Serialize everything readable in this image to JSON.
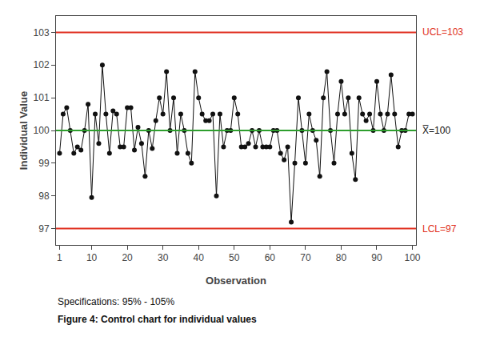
{
  "chart_data": {
    "type": "line",
    "xlabel": "Observation",
    "ylabel": "Individual Value",
    "x": [
      1,
      2,
      3,
      4,
      5,
      6,
      7,
      8,
      9,
      10,
      11,
      12,
      13,
      14,
      15,
      16,
      17,
      18,
      19,
      20,
      21,
      22,
      23,
      24,
      25,
      26,
      27,
      28,
      29,
      30,
      31,
      32,
      33,
      34,
      35,
      36,
      37,
      38,
      39,
      40,
      41,
      42,
      43,
      44,
      45,
      46,
      47,
      48,
      49,
      50,
      51,
      52,
      53,
      54,
      55,
      56,
      57,
      58,
      59,
      60,
      61,
      62,
      63,
      64,
      65,
      66,
      67,
      68,
      69,
      70,
      71,
      72,
      73,
      74,
      75,
      76,
      77,
      78,
      79,
      80,
      81,
      82,
      83,
      84,
      85,
      86,
      87,
      88,
      89,
      90,
      91,
      92,
      93,
      94,
      95,
      96,
      97,
      98,
      99,
      100
    ],
    "values": [
      99.3,
      100.5,
      100.7,
      100.0,
      99.3,
      99.5,
      99.4,
      100.0,
      100.8,
      97.95,
      100.5,
      99.6,
      102.0,
      100.5,
      99.3,
      100.6,
      100.5,
      99.5,
      99.5,
      100.7,
      100.7,
      99.4,
      100.1,
      99.6,
      98.6,
      100.0,
      99.45,
      100.3,
      101.0,
      100.5,
      101.8,
      100.0,
      101.0,
      99.3,
      100.5,
      100.0,
      99.3,
      99.0,
      101.8,
      101.0,
      100.5,
      100.3,
      100.3,
      100.5,
      98.0,
      100.5,
      99.5,
      100.0,
      100.0,
      101.0,
      100.5,
      99.5,
      99.5,
      99.6,
      100.0,
      99.5,
      100.0,
      99.5,
      99.5,
      99.5,
      100.0,
      100.0,
      99.3,
      99.1,
      99.5,
      97.2,
      99.0,
      101.0,
      100.0,
      99.0,
      100.5,
      100.0,
      99.7,
      98.6,
      101.0,
      101.8,
      100.0,
      99.0,
      100.5,
      101.5,
      100.5,
      101.0,
      99.3,
      98.5,
      101.0,
      100.5,
      100.3,
      100.5,
      100.0,
      101.5,
      100.5,
      100.0,
      100.5,
      101.7,
      100.5,
      99.5,
      100.0,
      100.0,
      100.5,
      100.5
    ],
    "color": "#111111",
    "marker": "circle",
    "line_style": "solid",
    "xlim": [
      0,
      101
    ],
    "xticks": [
      1,
      10,
      20,
      30,
      40,
      50,
      60,
      70,
      80,
      90,
      100
    ],
    "ylim": [
      96.5,
      103.5
    ],
    "yticks": [
      97,
      98,
      99,
      100,
      101,
      102,
      103
    ],
    "grid": false,
    "reference_lines": [
      {
        "value": 103,
        "label": "UCL=103",
        "color": "#e03020",
        "label_color": "#e03020"
      },
      {
        "value": 97,
        "label": "LCL=97",
        "color": "#e03020",
        "label_color": "#e03020"
      },
      {
        "value": 100,
        "label": "X̅=100",
        "color": "#2e9e2e",
        "label_color": "#111111"
      }
    ],
    "annotations": [
      "Specifications: 95% - 105%"
    ],
    "caption": "Figure 4: Control chart for individual values"
  }
}
